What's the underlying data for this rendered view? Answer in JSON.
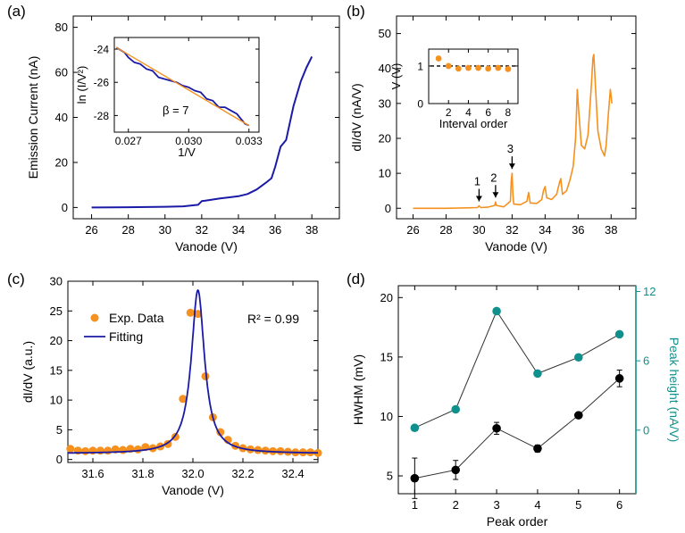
{
  "colors": {
    "blue": "#1a1aa6",
    "orange": "#f5911e",
    "teal": "#10908c",
    "black": "#000000"
  },
  "chart_data": [
    {
      "id": "a",
      "panel_label": "(a)",
      "type": "line",
      "xlabel": "Vanode (V)",
      "ylabel": "Emission Current (nA)",
      "xlim": [
        25,
        39.5
      ],
      "ylim": [
        -5,
        85
      ],
      "xticks": [
        "26",
        "28",
        "30",
        "32",
        "34",
        "36",
        "38"
      ],
      "yticks": [
        "0",
        "20",
        "40",
        "60",
        "80"
      ],
      "series": [
        {
          "color": "#1a1aa6",
          "x": [
            26,
            28,
            30,
            31,
            31.8,
            32,
            32.2,
            33,
            34,
            34.5,
            35,
            35.5,
            35.8,
            36,
            36.3,
            36.6,
            37,
            37.4,
            37.7,
            38
          ],
          "y": [
            0,
            0.1,
            0.3,
            0.5,
            1.2,
            2.8,
            3,
            4,
            5,
            6,
            8,
            11,
            13,
            18,
            27,
            30,
            45,
            56,
            62,
            67
          ]
        }
      ],
      "inset": {
        "type": "line",
        "xlabel": "1/V",
        "ylabel": "ln (I/V²)",
        "xlim": [
          0.0263,
          0.0335
        ],
        "ylim": [
          -29,
          -23.3
        ],
        "xticks": [
          "0.027",
          "0.030",
          "0.033"
        ],
        "yticks": [
          "-24",
          "-26",
          "-28"
        ],
        "annotation": "β = 7",
        "series": [
          {
            "color": "#1a1aa6",
            "x": [
              0.0264,
              0.0268,
              0.027,
              0.0273,
              0.0276,
              0.0279,
              0.0282,
              0.0285,
              0.0288,
              0.0291,
              0.0294,
              0.0297,
              0.03,
              0.0303,
              0.0306,
              0.0309,
              0.0312,
              0.0315,
              0.0318,
              0.0321,
              0.0324,
              0.0328,
              0.033
            ],
            "y": [
              -23.9,
              -24.2,
              -24.5,
              -24.8,
              -24.9,
              -25.2,
              -25.3,
              -25.7,
              -25.8,
              -25.9,
              -26.0,
              -26.2,
              -26.3,
              -26.5,
              -26.6,
              -27.0,
              -27.1,
              -27.5,
              -27.5,
              -27.7,
              -27.9,
              -28.5,
              -28.6
            ]
          },
          {
            "color": "#f5911e",
            "x": [
              0.0264,
              0.033
            ],
            "y": [
              -23.9,
              -28.6
            ]
          }
        ]
      }
    },
    {
      "id": "b",
      "panel_label": "(b)",
      "type": "line",
      "xlabel": "Vanode (V)",
      "ylabel": "dI/dV (nA/V)",
      "xlim": [
        25,
        39.5
      ],
      "ylim": [
        -3,
        55
      ],
      "xticks": [
        "26",
        "28",
        "30",
        "32",
        "34",
        "36",
        "38"
      ],
      "yticks": [
        "0",
        "10",
        "20",
        "30",
        "40",
        "50"
      ],
      "series": [
        {
          "color": "#f5911e",
          "x": [
            26,
            28,
            29,
            29.9,
            30,
            30.1,
            30.5,
            30.95,
            31,
            31.05,
            31.5,
            31.9,
            31.95,
            32,
            32.05,
            32.1,
            32.5,
            32.9,
            33,
            33.1,
            33.5,
            33.8,
            33.9,
            34,
            34.1,
            34.4,
            34.7,
            34.85,
            34.95,
            35.05,
            35.3,
            35.5,
            35.7,
            35.85,
            35.95,
            36.05,
            36.2,
            36.4,
            36.6,
            36.8,
            36.9,
            36.95,
            37.05,
            37.2,
            37.4,
            37.6,
            37.7,
            37.85,
            37.95,
            38.05
          ],
          "y": [
            0,
            0,
            0.1,
            0.2,
            0.7,
            0.2,
            0.3,
            0.8,
            1.8,
            0.8,
            0.4,
            2,
            8,
            10,
            4,
            1.2,
            1,
            2,
            4.5,
            1.5,
            1.4,
            2.5,
            5,
            6.2,
            3,
            2.5,
            4,
            7,
            8.5,
            4,
            5,
            8,
            12,
            20,
            34,
            27,
            18,
            17,
            21,
            35,
            43,
            44,
            35,
            22,
            17,
            15,
            18,
            28,
            34,
            30
          ]
        }
      ],
      "annotations": [
        {
          "text": "1",
          "x": 30,
          "y": 1.2
        },
        {
          "text": "2",
          "x": 31,
          "y": 2.3
        },
        {
          "text": "3",
          "x": 32,
          "y": 10.5
        }
      ],
      "inset": {
        "type": "scatter",
        "xlabel": "Interval order",
        "ylabel": "V (V)",
        "xlim": [
          0,
          9
        ],
        "ylim": [
          0,
          1.45
        ],
        "xticks": [
          "2",
          "4",
          "6",
          "8"
        ],
        "yticks": [
          "0",
          "1"
        ],
        "x": [
          1,
          2,
          3,
          4,
          5,
          6,
          7,
          8
        ],
        "y": [
          1.2,
          1.0,
          0.93,
          0.95,
          0.95,
          0.93,
          0.95,
          0.92
        ],
        "reference_y": 1
      }
    },
    {
      "id": "c",
      "panel_label": "(c)",
      "type": "scatter+line",
      "xlabel": "Vanode (V)",
      "ylabel": "dI/dV (a.u.)",
      "xlim": [
        31.5,
        32.5
      ],
      "ylim": [
        -0.5,
        30
      ],
      "xticks": [
        "31.6",
        "31.8",
        "32.0",
        "32.2",
        "32.4"
      ],
      "yticks": [
        "0",
        "5",
        "10",
        "15",
        "20",
        "25",
        "30"
      ],
      "annotation": "R² = 0.99",
      "legend": [
        {
          "label": "Exp. Data",
          "color": "#f5911e"
        },
        {
          "label": "Fitting",
          "color": "#1a1aa6"
        }
      ],
      "scatter": {
        "x": [
          31.51,
          31.54,
          31.57,
          31.6,
          31.63,
          31.66,
          31.69,
          31.72,
          31.75,
          31.78,
          31.81,
          31.84,
          31.87,
          31.9,
          31.93,
          31.96,
          31.99,
          32.02,
          32.05,
          32.08,
          32.11,
          32.14,
          32.17,
          32.2,
          32.23,
          32.26,
          32.29,
          32.32,
          32.35,
          32.38,
          32.41,
          32.44,
          32.47,
          32.5
        ],
        "y": [
          1.8,
          1.5,
          1.4,
          1.5,
          1.5,
          1.5,
          1.7,
          1.6,
          1.8,
          1.7,
          2.1,
          1.9,
          2.2,
          2.6,
          3.8,
          10.2,
          24.7,
          24.5,
          14,
          7.1,
          4.6,
          3.3,
          2.3,
          1.9,
          1.7,
          1.6,
          1.5,
          1.4,
          1.4,
          1.3,
          1.2,
          1.2,
          1.2,
          1.1
        ]
      },
      "fit": {
        "x0": 32.02,
        "amplitude": 28.5,
        "hwhm": 0.032,
        "baseline": 1.0
      }
    },
    {
      "id": "d",
      "panel_label": "(d)",
      "type": "scatter+line",
      "xlabel": "Peak order",
      "ylabel": "HWHM (mV)",
      "ylabel_right": "Peak height (nA/V)",
      "xlim": [
        0.6,
        6.4
      ],
      "ylim": [
        3.5,
        21
      ],
      "ylim_right": [
        -5.5,
        12.5
      ],
      "xticks": [
        "1",
        "2",
        "3",
        "4",
        "5",
        "6"
      ],
      "yticks": [
        "5",
        "10",
        "15",
        "20"
      ],
      "yticks_right": [
        "0",
        "6",
        "12"
      ],
      "series": [
        {
          "axis": "left",
          "color": "#000000",
          "x": [
            1,
            2,
            3,
            4,
            5,
            6
          ],
          "y": [
            4.8,
            5.5,
            9,
            7.3,
            10.1,
            13.2
          ],
          "err": [
            1.7,
            0.8,
            0.5,
            0.3,
            0.2,
            0.7
          ]
        },
        {
          "axis": "right",
          "color": "#10908c",
          "x": [
            1,
            2,
            3,
            4,
            5,
            6
          ],
          "y": [
            0.2,
            1.8,
            10.3,
            4.9,
            6.3,
            8.3
          ]
        }
      ]
    }
  ]
}
